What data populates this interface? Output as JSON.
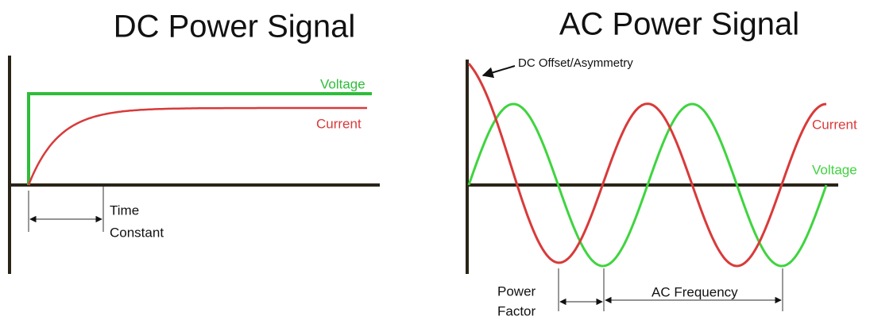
{
  "dc": {
    "title": "DC Power Signal",
    "voltage_label": "Voltage",
    "current_label": "Current",
    "time_constant": [
      "Time",
      "Constant"
    ]
  },
  "ac": {
    "title": "AC Power Signal",
    "offset_label": "DC Offset/Asymmetry",
    "current_label": "Current",
    "voltage_label": "Voltage",
    "power_factor": [
      "Power",
      "Factor"
    ],
    "frequency_label": "AC Frequency"
  }
}
